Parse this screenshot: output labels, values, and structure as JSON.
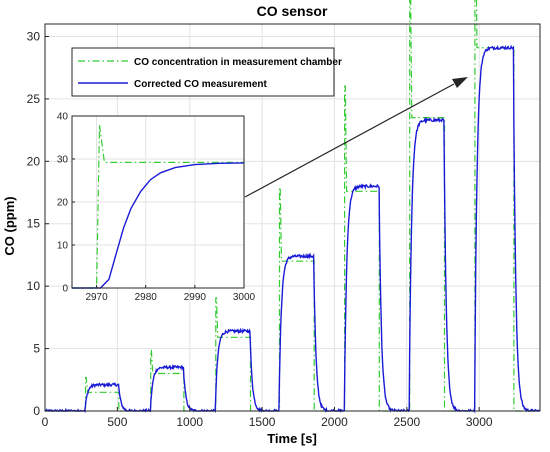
{
  "chart_data": {
    "type": "line",
    "title": "CO sensor",
    "xlabel": "Time [s]",
    "ylabel": "CO (ppm)",
    "xlim": [
      0,
      3420
    ],
    "ylim": [
      0,
      31
    ],
    "grid": true,
    "legend_position": "top-left",
    "x_ticks": [
      0,
      500,
      1000,
      1500,
      2000,
      2500,
      3000
    ],
    "y_ticks": [
      0,
      5,
      10,
      15,
      20,
      25,
      30
    ],
    "steps": [
      {
        "start": 280,
        "end": 510,
        "reference": 1.5,
        "corrected": 2.1
      },
      {
        "start": 730,
        "end": 960,
        "reference": 3.0,
        "corrected": 3.5
      },
      {
        "start": 1180,
        "end": 1420,
        "reference": 5.9,
        "corrected": 6.4
      },
      {
        "start": 1620,
        "end": 1860,
        "reference": 12.0,
        "corrected": 12.4
      },
      {
        "start": 2070,
        "end": 2310,
        "reference": 17.6,
        "corrected": 18.0
      },
      {
        "start": 2520,
        "end": 2760,
        "reference": 23.5,
        "corrected": 23.3
      },
      {
        "start": 2970,
        "end": 3240,
        "reference": 29.1,
        "corrected": 29.1
      }
    ],
    "series": [
      {
        "name": "CO concentration in measurement chamber",
        "color": "#33cc33",
        "style": "dash-dot"
      },
      {
        "name": "Corrected CO measurement",
        "color": "#1a1ad6",
        "style": "solid"
      }
    ],
    "inset": {
      "xlim": [
        2965,
        3000
      ],
      "ylim": [
        0,
        40
      ],
      "x_ticks": [
        2970,
        2980,
        2990,
        3000
      ],
      "y_ticks": [
        0,
        10,
        20,
        30,
        40
      ],
      "reference_points": [
        [
          2965,
          0
        ],
        [
          2970,
          0
        ],
        [
          2970.6,
          38
        ],
        [
          2971.6,
          29.2
        ],
        [
          3000,
          29.2
        ]
      ],
      "corrected_points": [
        [
          2965,
          0
        ],
        [
          2970.8,
          0
        ],
        [
          2972.5,
          2
        ],
        [
          2974,
          8
        ],
        [
          2975.5,
          14
        ],
        [
          2977,
          18.5
        ],
        [
          2979,
          22.5
        ],
        [
          2981,
          25.2
        ],
        [
          2983,
          26.8
        ],
        [
          2986,
          28
        ],
        [
          2990,
          28.7
        ],
        [
          2995,
          29
        ],
        [
          3000,
          29.1
        ]
      ]
    }
  }
}
